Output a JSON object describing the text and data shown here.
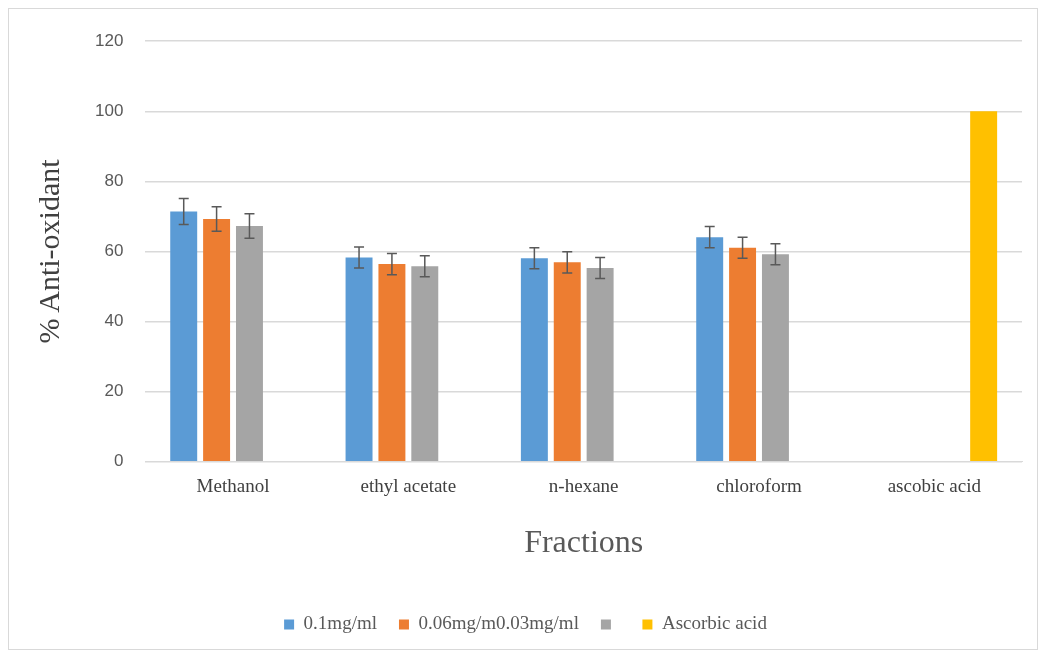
{
  "chart_data": {
    "type": "bar",
    "xlabel": "Fractions",
    "ylabel": "% Anti-oxidant",
    "categories": [
      "Methanol",
      "ethyl acetate",
      "n-hexane",
      "chloroform",
      "ascobic acid"
    ],
    "series": [
      {
        "name": "0.1mg/ml",
        "color": "#5b9bd5",
        "values": [
          71.4,
          58.3,
          58.1,
          64.1,
          0
        ],
        "errors": [
          3.7,
          3,
          3,
          3,
          null
        ]
      },
      {
        "name": "0.06mg/m0.03mg/ml",
        "color": "#ed7d31",
        "values": [
          69.3,
          56.4,
          56.9,
          61.1,
          0
        ],
        "errors": [
          3.5,
          3,
          3,
          3,
          null
        ]
      },
      {
        "color": "#a5a5a5",
        "values": [
          67.3,
          55.8,
          55.3,
          59.2,
          0
        ],
        "errors": [
          3.5,
          3,
          3,
          3,
          null
        ]
      },
      {
        "name": "Ascorbic acid",
        "color": "#ffc000",
        "values": [
          null,
          null,
          null,
          null,
          100
        ]
      }
    ],
    "ylim": [
      0,
      120
    ],
    "yticks": [
      0,
      20,
      40,
      60,
      80,
      100,
      120
    ],
    "grid": "y",
    "legend": "bottom"
  }
}
